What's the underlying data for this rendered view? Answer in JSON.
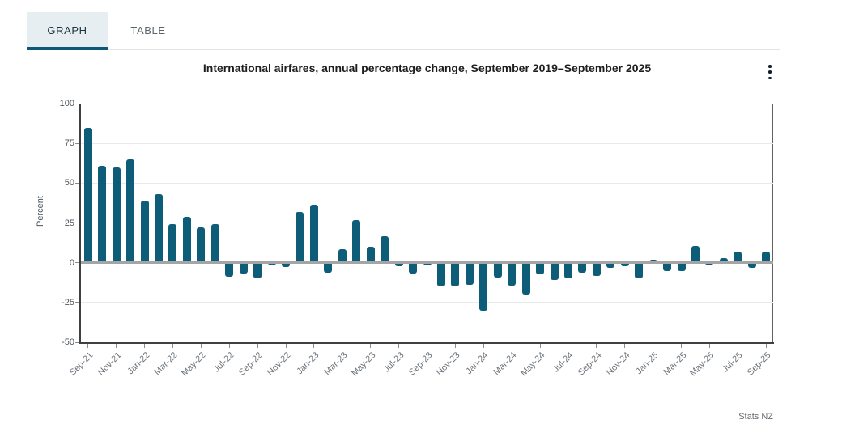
{
  "tabs": [
    {
      "label": "GRAPH",
      "active": true
    },
    {
      "label": "TABLE",
      "active": false
    }
  ],
  "title": "International airfares, annual percentage change, September 2019–September 2025",
  "source": "Stats NZ",
  "icons": {
    "menu": "kebab-menu-icon"
  },
  "colors": {
    "bar": "#0d5c78",
    "tab_active_bg": "#e7eef1",
    "tab_underline": "#0d5876",
    "zero_line": "#a5a5a5",
    "gridline": "#e9e9e9",
    "axis": "#404040"
  },
  "chart_data": {
    "type": "bar",
    "title": "International airfares, annual percentage change, September 2019–September 2025",
    "xlabel": "",
    "ylabel": "Percent",
    "ylim": [
      -50,
      100
    ],
    "yticks": [
      100,
      75,
      50,
      25,
      0,
      -25,
      -50
    ],
    "grid": true,
    "legend": false,
    "x_tick_labels": [
      "Sep-21",
      "Nov-21",
      "Jan-22",
      "Mar-22",
      "May-22",
      "Jul-22",
      "Sep-22",
      "Nov-22",
      "Jan-23",
      "Mar-23",
      "May-23",
      "Jul-23",
      "Sep-23",
      "Nov-23",
      "Jan-24",
      "Mar-24",
      "May-24",
      "Jul-24",
      "Sep-24",
      "Nov-24",
      "Jan-25",
      "Mar-25",
      "May-25",
      "Jul-25",
      "Sep-25"
    ],
    "categories": [
      "Sep-21",
      "Oct-21",
      "Nov-21",
      "Dec-21",
      "Jan-22",
      "Feb-22",
      "Mar-22",
      "Apr-22",
      "May-22",
      "Jun-22",
      "Jul-22",
      "Aug-22",
      "Sep-22",
      "Oct-22",
      "Nov-22",
      "Dec-22",
      "Jan-23",
      "Feb-23",
      "Mar-23",
      "Apr-23",
      "May-23",
      "Jun-23",
      "Jul-23",
      "Aug-23",
      "Sep-23",
      "Oct-23",
      "Nov-23",
      "Dec-23",
      "Jan-24",
      "Feb-24",
      "Mar-24",
      "Apr-24",
      "May-24",
      "Jun-24",
      "Jul-24",
      "Aug-24",
      "Sep-24",
      "Oct-24",
      "Nov-24",
      "Dec-24",
      "Jan-25",
      "Feb-25",
      "Mar-25",
      "Apr-25",
      "May-25",
      "Jun-25",
      "Jul-25",
      "Aug-25",
      "Sep-25"
    ],
    "values": [
      85,
      61,
      60,
      65,
      39,
      43,
      24,
      29,
      22,
      24,
      -9,
      -7,
      -10,
      -1,
      -2.5,
      32,
      36.5,
      -6.5,
      8.5,
      27,
      10,
      16.5,
      -2,
      -7,
      -1.5,
      -15,
      -15,
      -14,
      -30,
      -9.5,
      -14.5,
      -20,
      -7.5,
      -11,
      -10,
      -6.5,
      -8.5,
      -3,
      -2,
      -10,
      2,
      -5.5,
      -5.5,
      10.5,
      -1,
      3,
      7,
      -3,
      7
    ]
  }
}
